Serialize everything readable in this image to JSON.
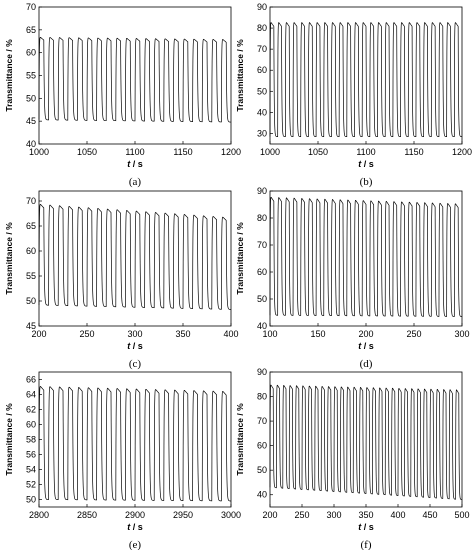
{
  "chart_data": [
    {
      "type": "line",
      "panel_label": "(a)",
      "ylabel": "Transmittance / %",
      "xlabel_italic": "t",
      "xlabel_unit": " / s",
      "xlim": [
        1000,
        1200
      ],
      "ylim": [
        40,
        70
      ],
      "xticks": [
        1000,
        1050,
        1100,
        1150,
        1200
      ],
      "yticks": [
        40,
        45,
        50,
        55,
        60,
        65,
        70
      ],
      "cycle_period_s": 10,
      "cycle_count": 20,
      "max_start": 63.5,
      "max_end": 63.0,
      "min_start": 45.3,
      "min_end": 44.8,
      "grid": false,
      "legend": "none"
    },
    {
      "type": "line",
      "panel_label": "(b)",
      "ylabel": "Transmittance / %",
      "xlabel_italic": "t",
      "xlabel_unit": " / s",
      "xlim": [
        1000,
        1200
      ],
      "ylim": [
        25,
        90
      ],
      "xticks": [
        1000,
        1050,
        1100,
        1150,
        1200
      ],
      "yticks": [
        30,
        40,
        50,
        60,
        70,
        80,
        90
      ],
      "cycle_period_s": 8,
      "cycle_count": 25,
      "max_start": 83,
      "max_end": 83,
      "min_start": 28.5,
      "min_end": 28.5,
      "grid": false,
      "legend": "none"
    },
    {
      "type": "line",
      "panel_label": "(c)",
      "ylabel": "Transmittance / %",
      "xlabel_italic": "t",
      "xlabel_unit": " / s",
      "xlim": [
        200,
        400
      ],
      "ylim": [
        45,
        72
      ],
      "xticks": [
        200,
        250,
        300,
        350,
        400
      ],
      "yticks": [
        45,
        50,
        55,
        60,
        65,
        70
      ],
      "cycle_period_s": 10,
      "cycle_count": 20,
      "max_start": 69.5,
      "max_end": 66.8,
      "min_start": 49.2,
      "min_end": 48.3,
      "grid": false,
      "legend": "none"
    },
    {
      "type": "line",
      "panel_label": "(d)",
      "ylabel": "Transmittance / %",
      "xlabel_italic": "t",
      "xlabel_unit": " / s",
      "xlim": [
        100,
        300
      ],
      "ylim": [
        40,
        90
      ],
      "xticks": [
        100,
        150,
        200,
        250,
        300
      ],
      "yticks": [
        40,
        50,
        60,
        70,
        80,
        90
      ],
      "cycle_period_s": 8,
      "cycle_count": 25,
      "max_start": 88,
      "max_end": 85.5,
      "min_start": 44,
      "min_end": 43.5,
      "grid": false,
      "legend": "none"
    },
    {
      "type": "line",
      "panel_label": "(e)",
      "ylabel": "Transmittance / %",
      "xlabel_italic": "t",
      "xlabel_unit": " / s",
      "xlim": [
        2800,
        3000
      ],
      "ylim": [
        49,
        67
      ],
      "xticks": [
        2800,
        2850,
        2900,
        2950,
        3000
      ],
      "yticks": [
        50,
        52,
        54,
        56,
        58,
        60,
        62,
        64,
        66
      ],
      "cycle_period_s": 10,
      "cycle_count": 20,
      "max_start": 65.2,
      "max_end": 64.5,
      "min_start": 50.0,
      "min_end": 49.8,
      "grid": false,
      "legend": "none"
    },
    {
      "type": "line",
      "panel_label": "(f)",
      "ylabel": "Transmittance / %",
      "xlabel_italic": "t",
      "xlabel_unit": " / s",
      "xlim": [
        200,
        500
      ],
      "ylim": [
        35,
        90
      ],
      "xticks": [
        200,
        250,
        300,
        350,
        400,
        450,
        500
      ],
      "yticks": [
        40,
        50,
        60,
        70,
        80,
        90
      ],
      "cycle_period_s": 10,
      "cycle_count": 30,
      "max_start": 85,
      "max_end": 83,
      "min_start": 43,
      "min_end": 38,
      "grid": false,
      "legend": "none"
    }
  ]
}
